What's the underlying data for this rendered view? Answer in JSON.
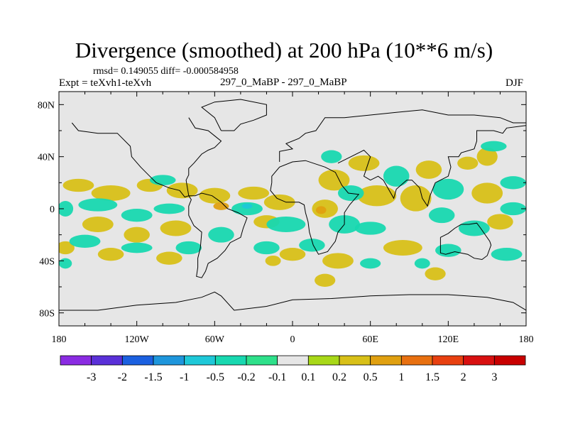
{
  "header": {
    "title": "Divergence (smoothed) at 200 hPa (10**6 m/s)",
    "stats": "rmsd= 0.149055 diff= -0.000584958",
    "expt": "Expt = teXvh1-teXvh",
    "center": "297_0_MaBP - 297_0_MaBP",
    "season": "DJF"
  },
  "chart_data": {
    "type": "heatmap",
    "title": "Divergence (smoothed) at 200 hPa (10**6 m/s)",
    "subtitle": "297_0_MaBP - 297_0_MaBP",
    "xlabel": "",
    "ylabel": "",
    "x_ticks": [
      "180",
      "120W",
      "60W",
      "0",
      "60E",
      "120E",
      "180"
    ],
    "x_tick_values": [
      -180,
      -120,
      -60,
      0,
      60,
      120,
      180
    ],
    "y_ticks": [
      "80N",
      "40N",
      "0",
      "40S",
      "80S"
    ],
    "y_tick_values": [
      80,
      40,
      0,
      -40,
      -80
    ],
    "xlim": [
      -180,
      180
    ],
    "ylim": [
      -90,
      90
    ],
    "colorbar": {
      "labels": [
        "-3",
        "-2",
        "-1.5",
        "-1",
        "-0.5",
        "-0.2",
        "-0.1",
        "0.1",
        "0.2",
        "0.5",
        "1",
        "1.5",
        "2",
        "3"
      ],
      "colors": [
        "#8a2be2",
        "#5a30d8",
        "#1b60e0",
        "#1e96dc",
        "#1ec8d8",
        "#18d8b0",
        "#2ee08a",
        "#e6e6e6",
        "#a8d818",
        "#d8c018",
        "#e0a010",
        "#e87010",
        "#e84010",
        "#d81010",
        "#c80000"
      ]
    },
    "blobs": [
      {
        "lon": -165,
        "lat": 18,
        "rlon": 12,
        "rlat": 5,
        "v": 0.3
      },
      {
        "lon": -140,
        "lat": 12,
        "rlon": 15,
        "rlat": 6,
        "v": 0.3
      },
      {
        "lon": -110,
        "lat": 18,
        "rlon": 10,
        "rlat": 5,
        "v": 0.3
      },
      {
        "lon": -85,
        "lat": 14,
        "rlon": 12,
        "rlat": 6,
        "v": 0.25
      },
      {
        "lon": -60,
        "lat": 10,
        "rlon": 12,
        "rlat": 6,
        "v": 0.3
      },
      {
        "lon": -55,
        "lat": 2,
        "rlon": 6,
        "rlat": 3,
        "v": 0.7
      },
      {
        "lon": -30,
        "lat": 12,
        "rlon": 12,
        "rlat": 5,
        "v": 0.3
      },
      {
        "lon": -10,
        "lat": 5,
        "rlon": 12,
        "rlat": 6,
        "v": 0.3
      },
      {
        "lon": -20,
        "lat": -10,
        "rlon": 10,
        "rlat": 5,
        "v": 0.25
      },
      {
        "lon": 25,
        "lat": 0,
        "rlon": 10,
        "rlat": 7,
        "v": 0.35
      },
      {
        "lon": 22,
        "lat": -1,
        "rlon": 4,
        "rlat": 3,
        "v": 0.8
      },
      {
        "lon": 32,
        "lat": 22,
        "rlon": 12,
        "rlat": 8,
        "v": 0.3
      },
      {
        "lon": 55,
        "lat": 35,
        "rlon": 12,
        "rlat": 6,
        "v": 0.3
      },
      {
        "lon": 65,
        "lat": 10,
        "rlon": 15,
        "rlat": 8,
        "v": 0.4
      },
      {
        "lon": 95,
        "lat": 8,
        "rlon": 12,
        "rlat": 10,
        "v": 0.3
      },
      {
        "lon": 105,
        "lat": 30,
        "rlon": 10,
        "rlat": 7,
        "v": 0.3
      },
      {
        "lon": 135,
        "lat": 35,
        "rlon": 8,
        "rlat": 5,
        "v": 0.3
      },
      {
        "lon": 150,
        "lat": 12,
        "rlon": 12,
        "rlat": 8,
        "v": 0.3
      },
      {
        "lon": 160,
        "lat": -10,
        "rlon": 10,
        "rlat": 6,
        "v": 0.3
      },
      {
        "lon": -150,
        "lat": -12,
        "rlon": 12,
        "rlat": 6,
        "v": 0.3
      },
      {
        "lon": -120,
        "lat": -20,
        "rlon": 10,
        "rlat": 6,
        "v": 0.3
      },
      {
        "lon": -90,
        "lat": -15,
        "rlon": 12,
        "rlat": 6,
        "v": 0.3
      },
      {
        "lon": -175,
        "lat": -30,
        "rlon": 7,
        "rlat": 5,
        "v": 0.3
      },
      {
        "lon": -140,
        "lat": -35,
        "rlon": 10,
        "rlat": 5,
        "v": 0.3
      },
      {
        "lon": -95,
        "lat": -38,
        "rlon": 10,
        "rlat": 5,
        "v": 0.3
      },
      {
        "lon": 0,
        "lat": -35,
        "rlon": 10,
        "rlat": 5,
        "v": 0.25
      },
      {
        "lon": 35,
        "lat": -40,
        "rlon": 12,
        "rlat": 6,
        "v": 0.3
      },
      {
        "lon": 85,
        "lat": -30,
        "rlon": 15,
        "rlat": 6,
        "v": 0.3
      },
      {
        "lon": 110,
        "lat": -50,
        "rlon": 8,
        "rlat": 5,
        "v": 0.3
      },
      {
        "lon": 150,
        "lat": 40,
        "rlon": 8,
        "rlat": 7,
        "v": 0.3
      },
      {
        "lon": 25,
        "lat": -55,
        "rlon": 8,
        "rlat": 5,
        "v": 0.3
      },
      {
        "lon": -15,
        "lat": -40,
        "rlon": 6,
        "rlat": 4,
        "v": 0.25
      },
      {
        "lon": -175,
        "lat": 0,
        "rlon": 6,
        "rlat": 6,
        "v": -0.4
      },
      {
        "lon": -150,
        "lat": 3,
        "rlon": 15,
        "rlat": 5,
        "v": -0.4
      },
      {
        "lon": -120,
        "lat": -5,
        "rlon": 12,
        "rlat": 5,
        "v": -0.4
      },
      {
        "lon": -95,
        "lat": 0,
        "rlon": 12,
        "rlat": 4,
        "v": -0.35
      },
      {
        "lon": -35,
        "lat": 0,
        "rlon": 12,
        "rlat": 5,
        "v": -0.4
      },
      {
        "lon": -35,
        "lat": 2,
        "rlon": 4,
        "rlat": 2,
        "v": -0.8
      },
      {
        "lon": -5,
        "lat": -12,
        "rlon": 15,
        "rlat": 6,
        "v": -0.4
      },
      {
        "lon": 40,
        "lat": -12,
        "rlon": 12,
        "rlat": 7,
        "v": -0.4
      },
      {
        "lon": 45,
        "lat": 12,
        "rlon": 10,
        "rlat": 6,
        "v": -0.35
      },
      {
        "lon": 80,
        "lat": 25,
        "rlon": 10,
        "rlat": 8,
        "v": -0.4
      },
      {
        "lon": 120,
        "lat": 15,
        "rlon": 12,
        "rlat": 8,
        "v": -0.4
      },
      {
        "lon": 115,
        "lat": -5,
        "rlon": 10,
        "rlat": 6,
        "v": -0.4
      },
      {
        "lon": 140,
        "lat": -15,
        "rlon": 12,
        "rlat": 6,
        "v": -0.4
      },
      {
        "lon": 170,
        "lat": 20,
        "rlon": 10,
        "rlat": 5,
        "v": -0.3
      },
      {
        "lon": 155,
        "lat": 48,
        "rlon": 10,
        "rlat": 4,
        "v": -0.35
      },
      {
        "lon": 30,
        "lat": 40,
        "rlon": 8,
        "rlat": 5,
        "v": -0.35
      },
      {
        "lon": -160,
        "lat": -25,
        "rlon": 12,
        "rlat": 5,
        "v": -0.35
      },
      {
        "lon": -120,
        "lat": -30,
        "rlon": 12,
        "rlat": 4,
        "v": -0.35
      },
      {
        "lon": -80,
        "lat": -30,
        "rlon": 10,
        "rlat": 5,
        "v": -0.3
      },
      {
        "lon": -55,
        "lat": -20,
        "rlon": 10,
        "rlat": 6,
        "v": -0.35
      },
      {
        "lon": -20,
        "lat": -30,
        "rlon": 10,
        "rlat": 5,
        "v": -0.35
      },
      {
        "lon": 15,
        "lat": -28,
        "rlon": 10,
        "rlat": 5,
        "v": -0.35
      },
      {
        "lon": 60,
        "lat": -15,
        "rlon": 12,
        "rlat": 5,
        "v": -0.35
      },
      {
        "lon": 120,
        "lat": -32,
        "rlon": 10,
        "rlat": 5,
        "v": -0.35
      },
      {
        "lon": 165,
        "lat": -35,
        "rlon": 12,
        "rlat": 5,
        "v": -0.35
      },
      {
        "lon": 60,
        "lat": -42,
        "rlon": 8,
        "rlat": 4,
        "v": -0.3
      },
      {
        "lon": 100,
        "lat": -42,
        "rlon": 6,
        "rlat": 4,
        "v": -0.3
      },
      {
        "lon": -175,
        "lat": -42,
        "rlon": 5,
        "rlat": 4,
        "v": -0.3
      },
      {
        "lon": 170,
        "lat": 0,
        "rlon": 10,
        "rlat": 5,
        "v": -0.3
      },
      {
        "lon": -100,
        "lat": 22,
        "rlon": 10,
        "rlat": 4,
        "v": -0.3
      }
    ]
  }
}
